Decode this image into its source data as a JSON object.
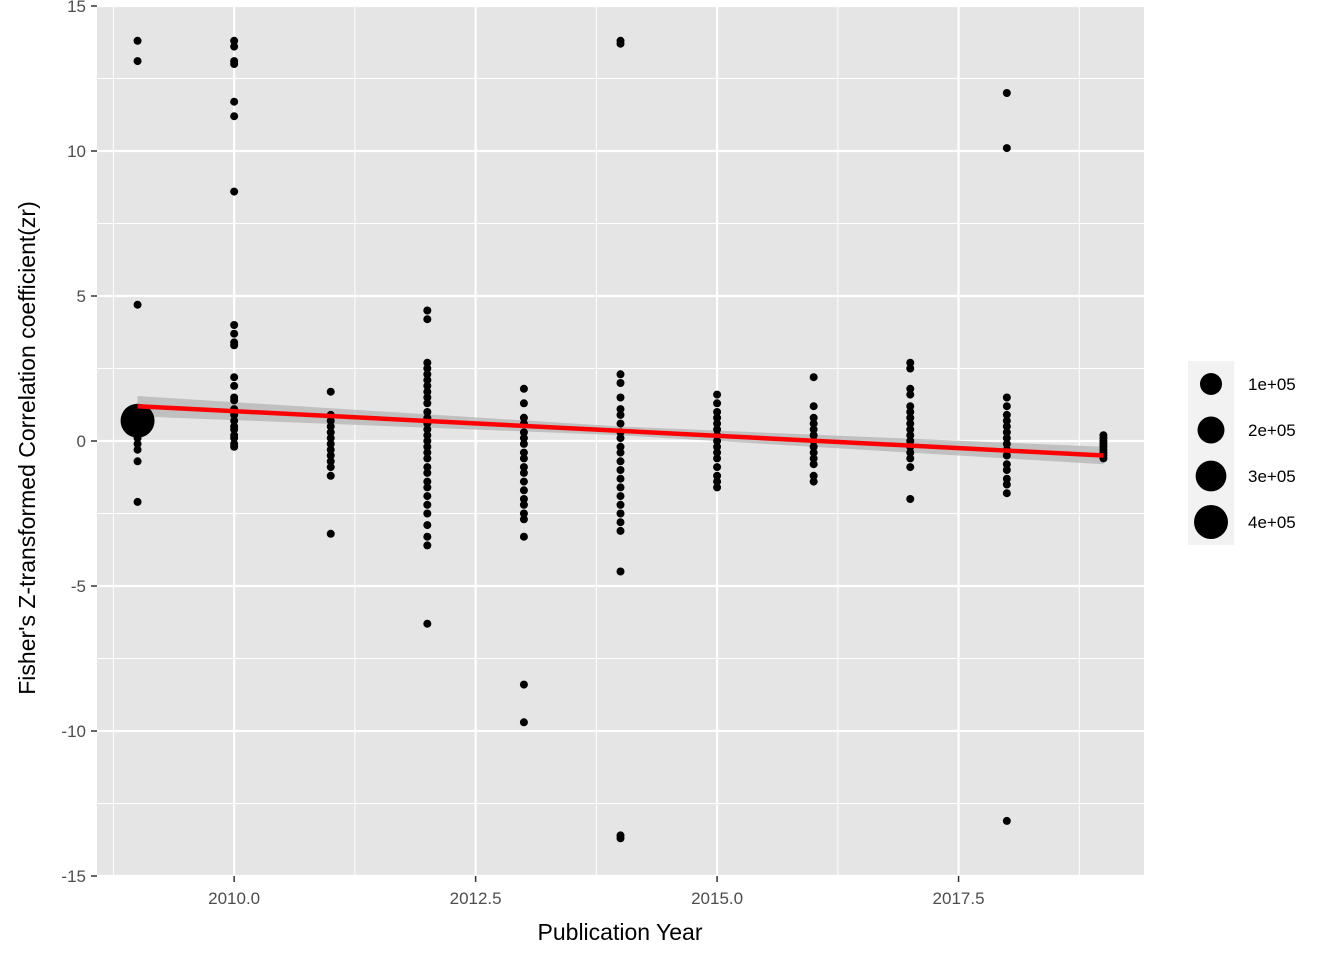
{
  "colors": {
    "panel_background": "#e5e5e5",
    "grid_major": "#ffffff",
    "points": "#000000",
    "trend_line": "#ff0000",
    "confidence_band": "#b3b3b3",
    "legend_key_background": "#f2f2f2"
  },
  "chart_data": {
    "type": "scatter",
    "xlabel": "Publication Year",
    "ylabel": "Fisher's Z-transformed Correlation coefficient(zr)",
    "xlim": [
      2008.58,
      2019.42
    ],
    "ylim": [
      -15,
      15
    ],
    "x_ticks": [
      2010.0,
      2012.5,
      2015.0,
      2017.5
    ],
    "x_tick_labels": [
      "2010.0",
      "2012.5",
      "2015.0",
      "2017.5"
    ],
    "y_ticks": [
      15,
      10,
      5,
      0,
      -5,
      -10,
      -15
    ],
    "y_tick_labels": [
      "15",
      "10",
      "5",
      "0",
      "-5",
      "-10",
      "-15"
    ],
    "grid": true,
    "legend_position": "right",
    "size_legend": {
      "values": [
        100000,
        200000,
        300000,
        400000
      ],
      "labels": [
        "1e+05",
        "2e+05",
        "3e+05",
        "4e+05"
      ]
    },
    "points": [
      {
        "x": 2009,
        "y": 13.8
      },
      {
        "x": 2009,
        "y": 13.1
      },
      {
        "x": 2009,
        "y": 4.7
      },
      {
        "x": 2009,
        "y": 0.7,
        "size": 400000
      },
      {
        "x": 2009,
        "y": 0.3
      },
      {
        "x": 2009,
        "y": 0.1
      },
      {
        "x": 2009,
        "y": -0.1
      },
      {
        "x": 2009,
        "y": -0.3
      },
      {
        "x": 2009,
        "y": -0.7
      },
      {
        "x": 2009,
        "y": -2.1
      },
      {
        "x": 2010,
        "y": 13.8
      },
      {
        "x": 2010,
        "y": 13.6
      },
      {
        "x": 2010,
        "y": 13.1
      },
      {
        "x": 2010,
        "y": 13.0
      },
      {
        "x": 2010,
        "y": 11.7
      },
      {
        "x": 2010,
        "y": 11.2
      },
      {
        "x": 2010,
        "y": 8.6
      },
      {
        "x": 2010,
        "y": 4.0
      },
      {
        "x": 2010,
        "y": 3.7
      },
      {
        "x": 2010,
        "y": 3.4
      },
      {
        "x": 2010,
        "y": 3.3
      },
      {
        "x": 2010,
        "y": 2.2
      },
      {
        "x": 2010,
        "y": 1.9
      },
      {
        "x": 2010,
        "y": 1.5
      },
      {
        "x": 2010,
        "y": 1.4
      },
      {
        "x": 2010,
        "y": 1.1
      },
      {
        "x": 2010,
        "y": 0.9
      },
      {
        "x": 2010,
        "y": 0.7
      },
      {
        "x": 2010,
        "y": 0.5
      },
      {
        "x": 2010,
        "y": 0.4
      },
      {
        "x": 2010,
        "y": 0.2
      },
      {
        "x": 2010,
        "y": 0.1
      },
      {
        "x": 2010,
        "y": -0.1
      },
      {
        "x": 2010,
        "y": -0.2
      },
      {
        "x": 2011,
        "y": 1.7
      },
      {
        "x": 2011,
        "y": 0.9
      },
      {
        "x": 2011,
        "y": 0.7
      },
      {
        "x": 2011,
        "y": 0.5
      },
      {
        "x": 2011,
        "y": 0.3
      },
      {
        "x": 2011,
        "y": 0.1
      },
      {
        "x": 2011,
        "y": -0.1
      },
      {
        "x": 2011,
        "y": -0.3
      },
      {
        "x": 2011,
        "y": -0.5
      },
      {
        "x": 2011,
        "y": -0.7
      },
      {
        "x": 2011,
        "y": -0.9
      },
      {
        "x": 2011,
        "y": -1.2
      },
      {
        "x": 2011,
        "y": -3.2
      },
      {
        "x": 2012,
        "y": 4.5
      },
      {
        "x": 2012,
        "y": 4.2
      },
      {
        "x": 2012,
        "y": 2.7
      },
      {
        "x": 2012,
        "y": 2.5
      },
      {
        "x": 2012,
        "y": 2.3
      },
      {
        "x": 2012,
        "y": 2.1
      },
      {
        "x": 2012,
        "y": 1.9
      },
      {
        "x": 2012,
        "y": 1.7
      },
      {
        "x": 2012,
        "y": 1.5
      },
      {
        "x": 2012,
        "y": 1.3
      },
      {
        "x": 2012,
        "y": 1.0
      },
      {
        "x": 2012,
        "y": 0.8
      },
      {
        "x": 2012,
        "y": 0.6
      },
      {
        "x": 2012,
        "y": 0.4
      },
      {
        "x": 2012,
        "y": 0.2
      },
      {
        "x": 2012,
        "y": 0.0
      },
      {
        "x": 2012,
        "y": -0.2
      },
      {
        "x": 2012,
        "y": -0.4
      },
      {
        "x": 2012,
        "y": -0.6
      },
      {
        "x": 2012,
        "y": -0.9
      },
      {
        "x": 2012,
        "y": -1.1
      },
      {
        "x": 2012,
        "y": -1.4
      },
      {
        "x": 2012,
        "y": -1.6
      },
      {
        "x": 2012,
        "y": -1.9
      },
      {
        "x": 2012,
        "y": -2.2
      },
      {
        "x": 2012,
        "y": -2.5
      },
      {
        "x": 2012,
        "y": -2.9
      },
      {
        "x": 2012,
        "y": -3.3
      },
      {
        "x": 2012,
        "y": -3.6
      },
      {
        "x": 2012,
        "y": -6.3
      },
      {
        "x": 2013,
        "y": 1.8
      },
      {
        "x": 2013,
        "y": 1.3
      },
      {
        "x": 2013,
        "y": 0.8
      },
      {
        "x": 2013,
        "y": 0.6
      },
      {
        "x": 2013,
        "y": 0.3
      },
      {
        "x": 2013,
        "y": 0.1
      },
      {
        "x": 2013,
        "y": -0.1
      },
      {
        "x": 2013,
        "y": -0.4
      },
      {
        "x": 2013,
        "y": -0.6
      },
      {
        "x": 2013,
        "y": -0.9
      },
      {
        "x": 2013,
        "y": -1.1
      },
      {
        "x": 2013,
        "y": -1.4
      },
      {
        "x": 2013,
        "y": -1.7
      },
      {
        "x": 2013,
        "y": -2.0
      },
      {
        "x": 2013,
        "y": -2.2
      },
      {
        "x": 2013,
        "y": -2.5
      },
      {
        "x": 2013,
        "y": -2.7
      },
      {
        "x": 2013,
        "y": -3.3
      },
      {
        "x": 2013,
        "y": -8.4
      },
      {
        "x": 2013,
        "y": -9.7
      },
      {
        "x": 2014,
        "y": 13.8
      },
      {
        "x": 2014,
        "y": 13.7
      },
      {
        "x": 2014,
        "y": 2.3
      },
      {
        "x": 2014,
        "y": 2.0
      },
      {
        "x": 2014,
        "y": 1.5
      },
      {
        "x": 2014,
        "y": 1.1
      },
      {
        "x": 2014,
        "y": 0.9
      },
      {
        "x": 2014,
        "y": 0.6
      },
      {
        "x": 2014,
        "y": 0.3
      },
      {
        "x": 2014,
        "y": 0.1
      },
      {
        "x": 2014,
        "y": -0.2
      },
      {
        "x": 2014,
        "y": -0.4
      },
      {
        "x": 2014,
        "y": -0.7
      },
      {
        "x": 2014,
        "y": -1.0
      },
      {
        "x": 2014,
        "y": -1.3
      },
      {
        "x": 2014,
        "y": -1.6
      },
      {
        "x": 2014,
        "y": -1.9
      },
      {
        "x": 2014,
        "y": -2.2
      },
      {
        "x": 2014,
        "y": -2.5
      },
      {
        "x": 2014,
        "y": -2.8
      },
      {
        "x": 2014,
        "y": -3.1
      },
      {
        "x": 2014,
        "y": -4.5
      },
      {
        "x": 2014,
        "y": -13.6
      },
      {
        "x": 2014,
        "y": -13.7
      },
      {
        "x": 2015,
        "y": 1.6
      },
      {
        "x": 2015,
        "y": 1.3
      },
      {
        "x": 2015,
        "y": 1.0
      },
      {
        "x": 2015,
        "y": 0.8
      },
      {
        "x": 2015,
        "y": 0.6
      },
      {
        "x": 2015,
        "y": 0.4
      },
      {
        "x": 2015,
        "y": 0.2
      },
      {
        "x": 2015,
        "y": 0.0
      },
      {
        "x": 2015,
        "y": -0.2
      },
      {
        "x": 2015,
        "y": -0.4
      },
      {
        "x": 2015,
        "y": -0.6
      },
      {
        "x": 2015,
        "y": -0.9
      },
      {
        "x": 2015,
        "y": -1.2
      },
      {
        "x": 2015,
        "y": -1.4
      },
      {
        "x": 2015,
        "y": -1.6
      },
      {
        "x": 2016,
        "y": 2.2
      },
      {
        "x": 2016,
        "y": 1.2
      },
      {
        "x": 2016,
        "y": 0.8
      },
      {
        "x": 2016,
        "y": 0.6
      },
      {
        "x": 2016,
        "y": 0.4
      },
      {
        "x": 2016,
        "y": 0.2
      },
      {
        "x": 2016,
        "y": 0.0
      },
      {
        "x": 2016,
        "y": -0.2
      },
      {
        "x": 2016,
        "y": -0.4
      },
      {
        "x": 2016,
        "y": -0.6
      },
      {
        "x": 2016,
        "y": -0.8
      },
      {
        "x": 2016,
        "y": -1.2
      },
      {
        "x": 2016,
        "y": -1.4
      },
      {
        "x": 2017,
        "y": 2.7
      },
      {
        "x": 2017,
        "y": 2.5
      },
      {
        "x": 2017,
        "y": 1.8
      },
      {
        "x": 2017,
        "y": 1.6
      },
      {
        "x": 2017,
        "y": 1.2
      },
      {
        "x": 2017,
        "y": 1.0
      },
      {
        "x": 2017,
        "y": 0.8
      },
      {
        "x": 2017,
        "y": 0.6
      },
      {
        "x": 2017,
        "y": 0.4
      },
      {
        "x": 2017,
        "y": 0.2
      },
      {
        "x": 2017,
        "y": 0.0
      },
      {
        "x": 2017,
        "y": -0.2
      },
      {
        "x": 2017,
        "y": -0.4
      },
      {
        "x": 2017,
        "y": -0.6
      },
      {
        "x": 2017,
        "y": -0.9
      },
      {
        "x": 2017,
        "y": -2.0
      },
      {
        "x": 2018,
        "y": 12.0
      },
      {
        "x": 2018,
        "y": 10.1
      },
      {
        "x": 2018,
        "y": 1.5
      },
      {
        "x": 2018,
        "y": 1.2
      },
      {
        "x": 2018,
        "y": 0.9
      },
      {
        "x": 2018,
        "y": 0.7
      },
      {
        "x": 2018,
        "y": 0.5
      },
      {
        "x": 2018,
        "y": 0.3
      },
      {
        "x": 2018,
        "y": 0.1
      },
      {
        "x": 2018,
        "y": -0.1
      },
      {
        "x": 2018,
        "y": -0.3
      },
      {
        "x": 2018,
        "y": -0.5
      },
      {
        "x": 2018,
        "y": -0.8
      },
      {
        "x": 2018,
        "y": -1.0
      },
      {
        "x": 2018,
        "y": -1.3
      },
      {
        "x": 2018,
        "y": -1.5
      },
      {
        "x": 2018,
        "y": -1.8
      },
      {
        "x": 2018,
        "y": -13.1
      },
      {
        "x": 2019,
        "y": 0.2
      },
      {
        "x": 2019,
        "y": 0.1
      },
      {
        "x": 2019,
        "y": 0.0
      },
      {
        "x": 2019,
        "y": -0.1
      },
      {
        "x": 2019,
        "y": -0.2
      },
      {
        "x": 2019,
        "y": -0.3
      },
      {
        "x": 2019,
        "y": -0.4
      },
      {
        "x": 2019,
        "y": -0.5
      },
      {
        "x": 2019,
        "y": -0.6
      }
    ],
    "trend_line": {
      "x": [
        2009,
        2019
      ],
      "y": [
        1.2,
        -0.5
      ]
    },
    "confidence_band": {
      "x": [
        2009,
        2014,
        2019
      ],
      "upper": [
        1.55,
        0.5,
        -0.2
      ],
      "lower": [
        0.85,
        0.2,
        -0.8
      ]
    }
  }
}
